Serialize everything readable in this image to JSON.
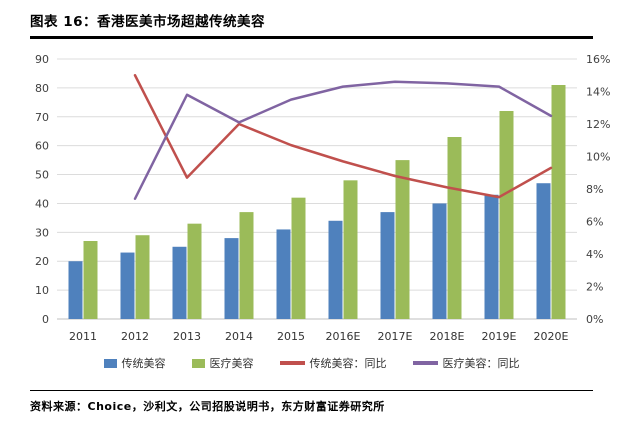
{
  "header": {
    "title": "图表 16：香港医美市场超越传统美容"
  },
  "footer": {
    "source": "资料来源：Choice，沙利文，公司招股说明书，东方财富证券研究所"
  },
  "chart_data": {
    "type": "bar",
    "subtype": "grouped-bars-with-lines-dual-axis",
    "title": "香港医美市场超越传统美容",
    "xlabel": "",
    "ylabel": "",
    "categories": [
      "2011",
      "2012",
      "2013",
      "2014",
      "2015",
      "2016E",
      "2017E",
      "2018E",
      "2019E",
      "2020E"
    ],
    "bar_series": [
      {
        "name": "传统美容",
        "color": "#4F81BD",
        "axis": "left",
        "values": [
          20,
          23,
          25,
          28,
          31,
          34,
          37,
          40,
          43,
          47
        ]
      },
      {
        "name": "医疗美容",
        "color": "#9BBB59",
        "axis": "left",
        "values": [
          27,
          29,
          33,
          37,
          42,
          48,
          55,
          63,
          72,
          81
        ]
      }
    ],
    "line_series": [
      {
        "name": "传统美容：同比",
        "color": "#C0504D",
        "axis": "right",
        "values": [
          null,
          15.0,
          8.7,
          12.0,
          10.7,
          9.7,
          8.8,
          8.1,
          7.5,
          9.3
        ]
      },
      {
        "name": "医疗美容：同比",
        "color": "#8064A2",
        "axis": "right",
        "values": [
          null,
          7.4,
          13.8,
          12.1,
          13.5,
          14.3,
          14.6,
          14.5,
          14.3,
          12.5
        ]
      }
    ],
    "left_axis": {
      "min": 0,
      "max": 90,
      "step": 10
    },
    "right_axis": {
      "min": 0,
      "max": 16,
      "step": 2,
      "suffix": "%"
    },
    "grid": true,
    "gridline_color": "#dcdcdc",
    "baseline_color": "#bfbfbf",
    "legend_position": "bottom"
  }
}
